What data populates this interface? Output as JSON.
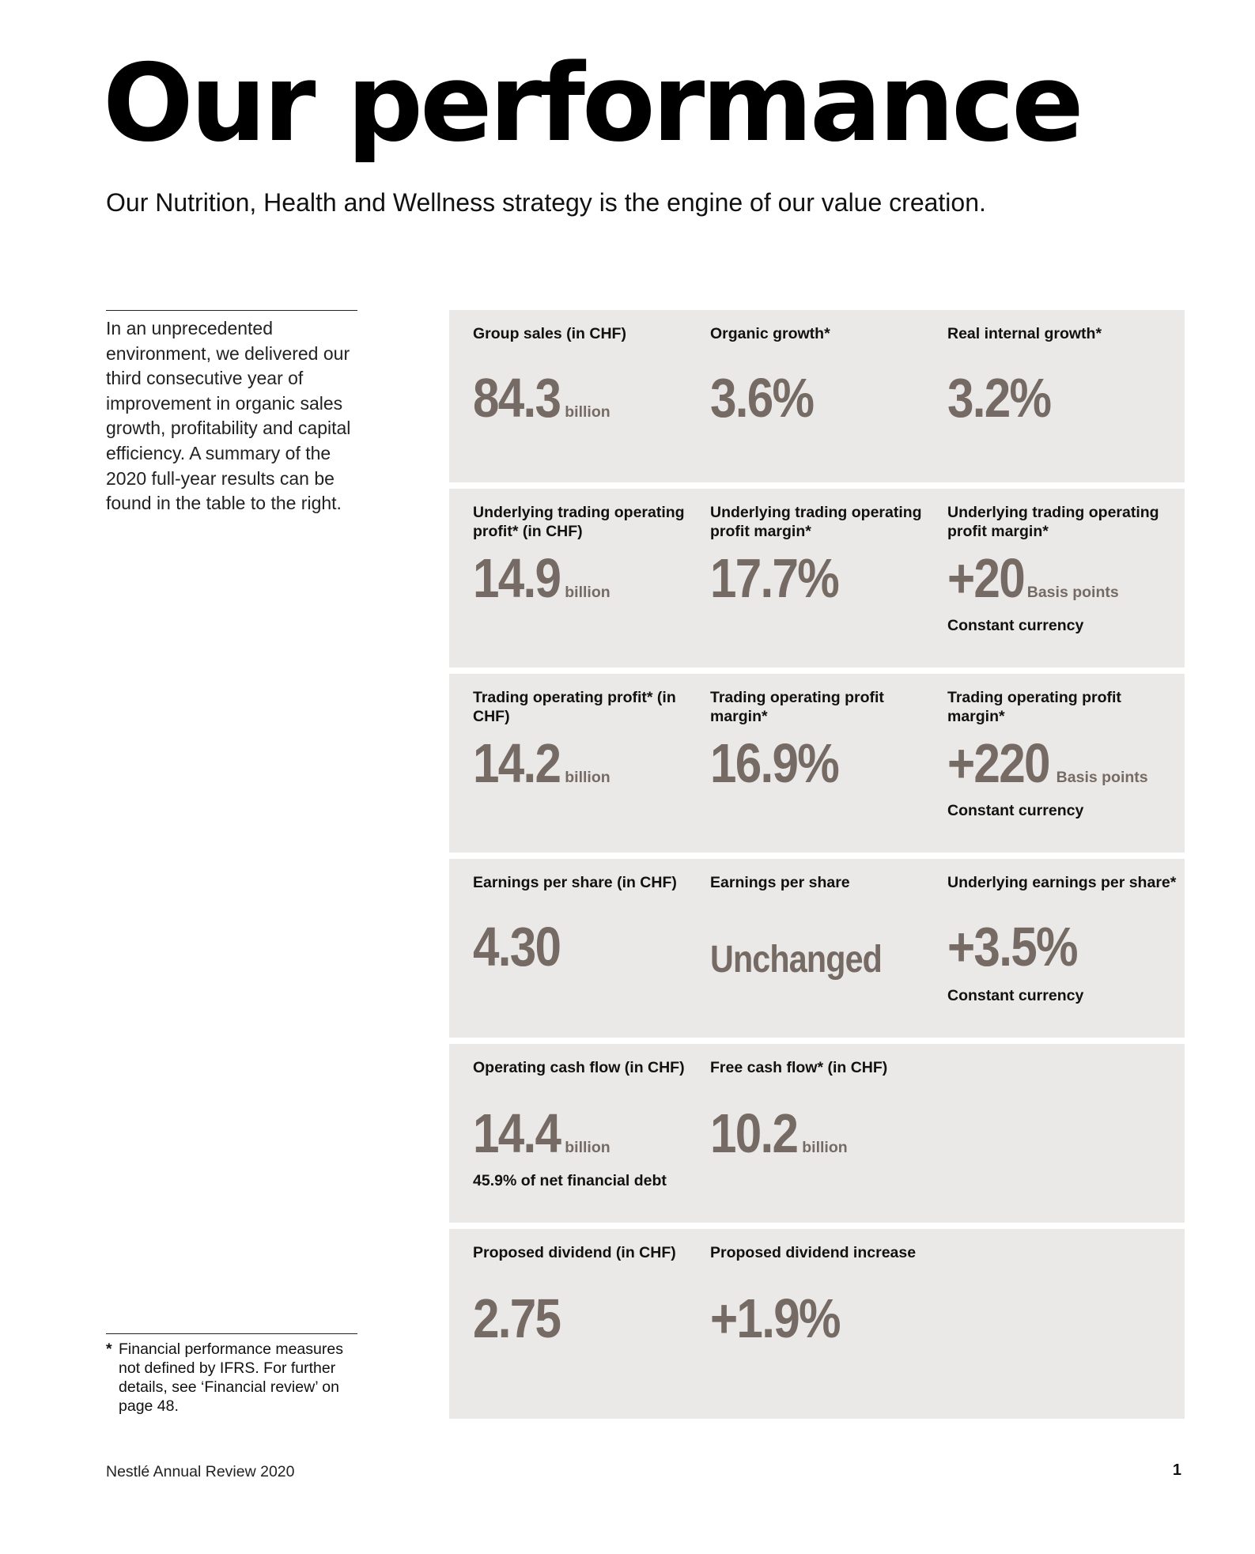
{
  "title": "Our performance",
  "subtitle": "Our Nutrition, Health and Wellness strategy is the engine of our value creation.",
  "intro": "In an unprecedented environment, we delivered our third consecutive year of improvement in organic sales growth, profitability and capital efficiency. A summary of the 2020 full-year results can be found in the table to the right.",
  "footnote": {
    "star": "*",
    "text": "Financial performance measures not defined by IFRS. For further details, see ‘Financial review’ on page 48."
  },
  "footer": {
    "publication": "Nestlé Annual Review 2020",
    "page_number": "1"
  },
  "colors": {
    "panel_bg": "#ebe9e8",
    "value_text": "#756b64"
  },
  "rows": [
    {
      "cells": [
        {
          "label": "Group sales (in CHF)",
          "value": "84.3",
          "unit": "billion"
        },
        {
          "label": "Organic growth*",
          "value": "3.6%"
        },
        {
          "label": "Real internal growth*",
          "value": "3.2%"
        }
      ]
    },
    {
      "cells": [
        {
          "label": "Underlying trading operating profit* (in CHF)",
          "value": "14.9",
          "unit": "billion"
        },
        {
          "label": "Underlying trading operating profit margin*",
          "value": "17.7%"
        },
        {
          "label": "Underlying trading operating profit margin*",
          "value": "+20",
          "unit": "Basis points",
          "note": "Constant currency"
        }
      ]
    },
    {
      "cells": [
        {
          "label": "Trading operating profit* (in CHF)",
          "value": "14.2",
          "unit": "billion"
        },
        {
          "label": "Trading operating profit margin*",
          "value": "16.9%"
        },
        {
          "label": "Trading operating profit margin*",
          "value": "+220",
          "unit": "Basis points",
          "note": "Constant currency"
        }
      ]
    },
    {
      "cells": [
        {
          "label": "Earnings per share (in CHF)",
          "value": "4.30"
        },
        {
          "label": "Earnings per share",
          "value": "Unchanged"
        },
        {
          "label": "Underlying earnings per share*",
          "value": "+3.5%",
          "note": "Constant currency"
        }
      ]
    },
    {
      "cells": [
        {
          "label": "Operating cash flow (in CHF)",
          "value": "14.4",
          "unit": "billion",
          "note": "45.9% of net financial debt"
        },
        {
          "label": "Free cash flow* (in CHF)",
          "value": "10.2",
          "unit": "billion"
        }
      ]
    },
    {
      "cells": [
        {
          "label": "Proposed dividend (in CHF)",
          "value": "2.75"
        },
        {
          "label": "Proposed dividend increase",
          "value": "+1.9%"
        }
      ]
    }
  ]
}
